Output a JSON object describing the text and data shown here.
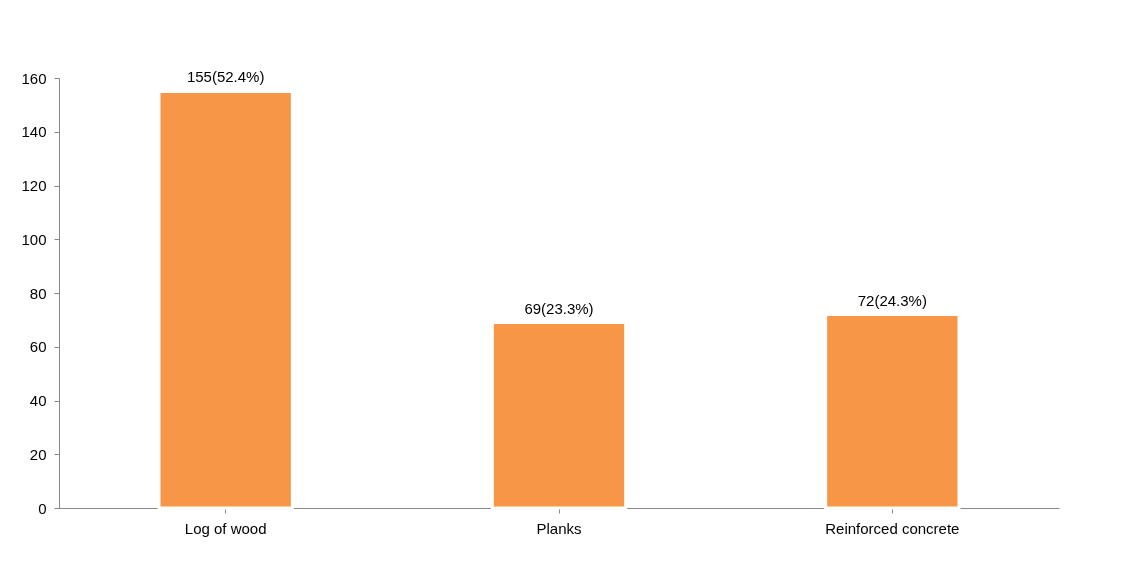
{
  "chart_data": {
    "type": "bar",
    "categories": [
      "Log of wood",
      "Planks",
      "Reinforced concrete"
    ],
    "values": [
      155,
      69,
      72
    ],
    "value_labels": [
      "155(52.4%)",
      "69(23.3%)",
      "72(24.3%)"
    ],
    "color": "#f79646",
    "ylim": [
      0,
      160
    ],
    "yticks": [
      0,
      20,
      40,
      60,
      80,
      100,
      120,
      140,
      160
    ]
  }
}
